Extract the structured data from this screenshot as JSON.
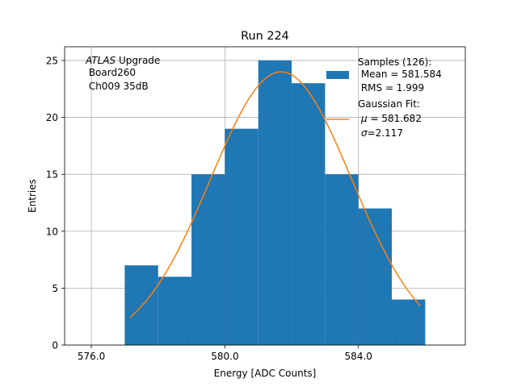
{
  "chart_data": {
    "type": "bar",
    "title": "Run 224",
    "xlabel": "Energy [ADC Counts]",
    "ylabel": "Entries",
    "xlim": [
      575.2,
      587.2
    ],
    "ylim": [
      0,
      26.2
    ],
    "grid": true,
    "xticks": [
      576.0,
      580.0,
      584.0
    ],
    "xtick_labels": [
      "576.0",
      "580.0",
      "584.0"
    ],
    "yticks": [
      0,
      5,
      10,
      15,
      20,
      25
    ],
    "ytick_labels": [
      "0",
      "5",
      "10",
      "15",
      "20",
      "25"
    ],
    "bin_edges": [
      577,
      578,
      579,
      580,
      581,
      582,
      583,
      584,
      585,
      586
    ],
    "values": [
      7,
      6,
      15,
      19,
      25,
      23,
      15,
      12,
      4
    ],
    "bar_color": "#1f77b4",
    "fit": {
      "name": "Gaussian Fit",
      "color": "#ff7f0e",
      "amplitude": 24.0,
      "mu": 581.682,
      "sigma": 2.117,
      "x_range": [
        577.15,
        585.85
      ]
    },
    "annotation": {
      "italic": "ATLAS",
      "rest": " Upgrade",
      "line2": " Board260",
      "line3": " Ch009 35dB"
    },
    "legend": {
      "placement": "top-right",
      "samples_line1": "Samples (126):",
      "samples_line2": " Mean = 581.584",
      "samples_line3": " RMS = 1.999",
      "fit_line1": "Gaussian Fit:",
      "fit_mu_symbol": "μ",
      "fit_mu_value": " = 581.682",
      "fit_sigma_symbol": "σ",
      "fit_sigma_value": "=2.117"
    }
  }
}
